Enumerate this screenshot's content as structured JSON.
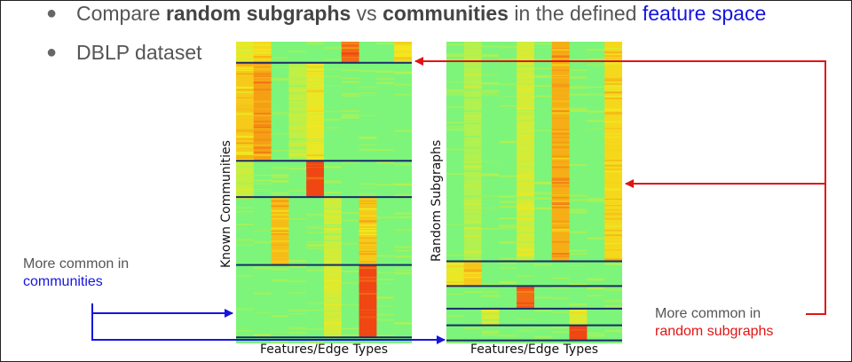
{
  "bullets": [
    {
      "parts": [
        {
          "text": "Compare ",
          "style": "plain"
        },
        {
          "text": "random subgraphs",
          "style": "bold"
        },
        {
          "text": " vs ",
          "style": "plain"
        },
        {
          "text": "communities",
          "style": "bold"
        },
        {
          "text": " in the defined ",
          "style": "plain"
        },
        {
          "text": "feature space",
          "style": "blue"
        }
      ]
    },
    {
      "parts": [
        {
          "text": "DBLP dataset",
          "style": "plain"
        }
      ]
    }
  ],
  "heatmaps": {
    "left": {
      "ylabel": "Known Communities",
      "xlabel": "Features/Edge Types",
      "columns": 10,
      "base_color": "#7cf57a",
      "dividers_fraction": [
        0.07,
        0.395,
        0.515,
        0.74,
        0.98
      ],
      "hot_cells": [
        {
          "col": 0,
          "from": 0.0,
          "to": 0.07,
          "level": 0.45
        },
        {
          "col": 1,
          "from": 0.0,
          "to": 0.07,
          "level": 0.55
        },
        {
          "col": 6,
          "from": 0.0,
          "to": 0.07,
          "level": 0.9
        },
        {
          "col": 9,
          "from": 0.0,
          "to": 0.07,
          "level": 0.5
        },
        {
          "col": 0,
          "from": 0.07,
          "to": 0.395,
          "level": 0.6
        },
        {
          "col": 1,
          "from": 0.07,
          "to": 0.395,
          "level": 0.75
        },
        {
          "col": 4,
          "from": 0.07,
          "to": 0.395,
          "level": 0.45
        },
        {
          "col": 3,
          "from": 0.07,
          "to": 0.395,
          "level": 0.25
        },
        {
          "col": 0,
          "from": 0.395,
          "to": 0.515,
          "level": 0.3
        },
        {
          "col": 4,
          "from": 0.395,
          "to": 0.515,
          "level": 1.0
        },
        {
          "col": 2,
          "from": 0.515,
          "to": 0.74,
          "level": 0.65
        },
        {
          "col": 7,
          "from": 0.515,
          "to": 0.74,
          "level": 0.6
        },
        {
          "col": 5,
          "from": 0.515,
          "to": 0.74,
          "level": 0.3
        },
        {
          "col": 7,
          "from": 0.74,
          "to": 0.98,
          "level": 1.0
        },
        {
          "col": 5,
          "from": 0.74,
          "to": 0.98,
          "level": 0.35
        }
      ]
    },
    "right": {
      "ylabel": "Random Subgraphs",
      "xlabel": "Features/Edge Types",
      "columns": 10,
      "base_color": "#7cf57a",
      "dividers_fraction": [
        0.728,
        0.81,
        0.885,
        0.94,
        0.99
      ],
      "hot_cells": [
        {
          "col": 6,
          "from": 0.0,
          "to": 0.728,
          "level": 0.7
        },
        {
          "col": 4,
          "from": 0.0,
          "to": 0.728,
          "level": 0.35
        },
        {
          "col": 9,
          "from": 0.0,
          "to": 0.728,
          "level": 0.55
        },
        {
          "col": 1,
          "from": 0.0,
          "to": 0.728,
          "level": 0.2
        },
        {
          "col": 0,
          "from": 0.728,
          "to": 0.81,
          "level": 0.45
        },
        {
          "col": 1,
          "from": 0.728,
          "to": 0.81,
          "level": 0.6
        },
        {
          "col": 4,
          "from": 0.81,
          "to": 0.885,
          "level": 0.9
        },
        {
          "col": 7,
          "from": 0.885,
          "to": 0.94,
          "level": 0.4
        },
        {
          "col": 2,
          "from": 0.885,
          "to": 0.94,
          "level": 0.35
        },
        {
          "col": 7,
          "from": 0.94,
          "to": 0.99,
          "level": 1.0
        }
      ]
    }
  },
  "notes": {
    "communities": {
      "line1": "More common in",
      "line2": "communities",
      "line2_color": "blue"
    },
    "random": {
      "line1": "More common in",
      "line2": "random subgraphs",
      "line2_color": "red"
    }
  },
  "colors": {
    "blue_arrow": "#1515e0",
    "red_arrow": "#e01515",
    "divider": "#1a2a6a"
  }
}
